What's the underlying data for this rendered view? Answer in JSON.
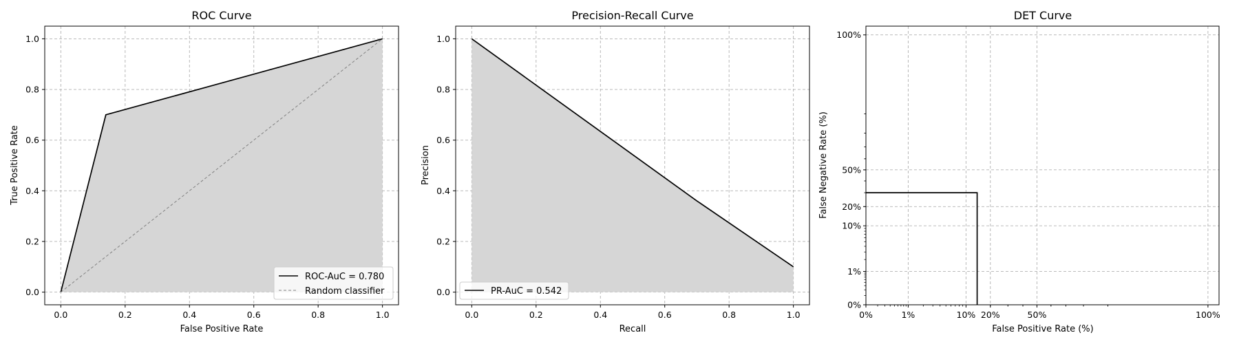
{
  "chart_data": [
    {
      "type": "line",
      "title": "ROC Curve",
      "xlabel": "False Positive Rate",
      "ylabel": "True Positive Rate",
      "xlim": [
        -0.05,
        1.05
      ],
      "ylim": [
        -0.05,
        1.05
      ],
      "xticks": [
        0.0,
        0.2,
        0.4,
        0.6,
        0.8,
        1.0
      ],
      "xtick_labels": [
        "0.0",
        "0.2",
        "0.4",
        "0.6",
        "0.8",
        "1.0"
      ],
      "yticks": [
        0.0,
        0.2,
        0.4,
        0.6,
        0.8,
        1.0
      ],
      "ytick_labels": [
        "0.0",
        "0.2",
        "0.4",
        "0.6",
        "0.8",
        "1.0"
      ],
      "grid": true,
      "legend_position": "lower-right",
      "fill_under": true,
      "series": [
        {
          "name": "ROC-AuC = 0.780",
          "style": "solid",
          "color": "#000000",
          "x": [
            0.0,
            0.14,
            1.0
          ],
          "y": [
            0.0,
            0.7,
            1.0
          ]
        },
        {
          "name": "Random classifier",
          "style": "dashed",
          "color": "#808080",
          "x": [
            0.0,
            1.0
          ],
          "y": [
            0.0,
            1.0
          ]
        }
      ]
    },
    {
      "type": "line",
      "title": "Precision-Recall Curve",
      "xlabel": "Recall",
      "ylabel": "Precision",
      "xlim": [
        -0.05,
        1.05
      ],
      "ylim": [
        -0.05,
        1.05
      ],
      "xticks": [
        0.0,
        0.2,
        0.4,
        0.6,
        0.8,
        1.0
      ],
      "xtick_labels": [
        "0.0",
        "0.2",
        "0.4",
        "0.6",
        "0.8",
        "1.0"
      ],
      "yticks": [
        0.0,
        0.2,
        0.4,
        0.6,
        0.8,
        1.0
      ],
      "ytick_labels": [
        "0.0",
        "0.2",
        "0.4",
        "0.6",
        "0.8",
        "1.0"
      ],
      "grid": true,
      "legend_position": "lower-left",
      "fill_under": true,
      "series": [
        {
          "name": "PR-AuC = 0.542",
          "style": "solid",
          "color": "#000000",
          "x": [
            0.0,
            0.7,
            1.0
          ],
          "y": [
            1.0,
            0.36,
            0.1
          ]
        }
      ]
    },
    {
      "type": "line",
      "title": "DET Curve",
      "xlabel": "False Positive Rate (%)",
      "ylabel": "False Negative Rate (%)",
      "scale": "normal-deviate (probit)",
      "xticks": [
        0.0,
        0.01,
        0.1,
        0.2,
        0.5,
        1.0
      ],
      "xtick_labels": [
        "0%",
        "1%",
        "10%",
        "20%",
        "50%",
        "100%"
      ],
      "yticks": [
        0.0,
        0.01,
        0.1,
        0.2,
        0.5,
        1.0
      ],
      "ytick_labels": [
        "0%",
        "1%",
        "10%",
        "20%",
        "50%",
        "100%"
      ],
      "grid": true,
      "series": [
        {
          "style": "solid",
          "color": "#000000",
          "x": [
            0.0,
            0.14,
            0.14
          ],
          "y": [
            0.3,
            0.3,
            0.0
          ]
        }
      ]
    }
  ]
}
